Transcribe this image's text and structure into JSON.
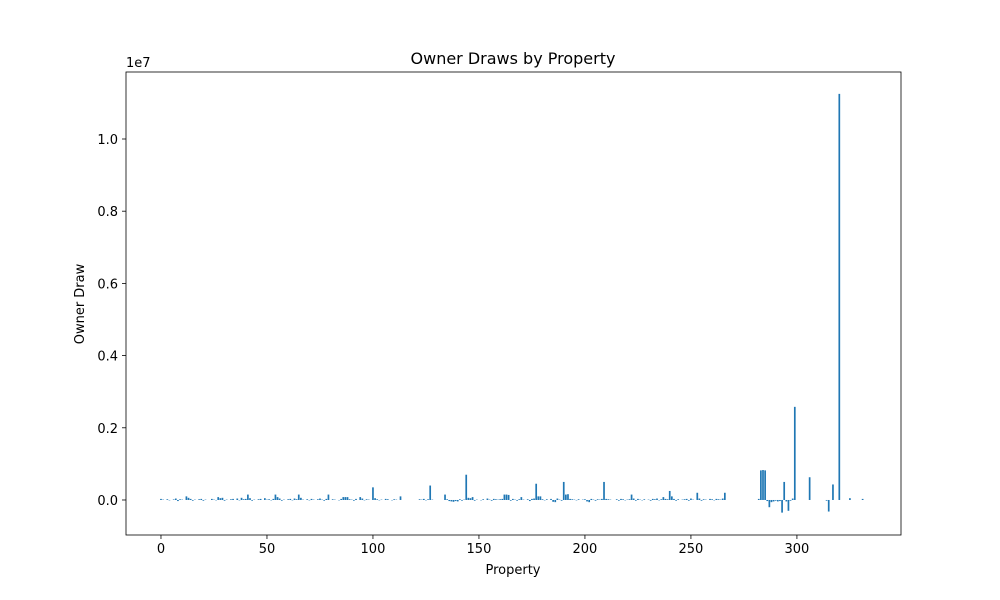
{
  "chart_data": {
    "type": "bar",
    "title": "Owner Draws by Property",
    "xlabel": "Property",
    "ylabel": "Owner Draw",
    "y_offset_label": "1e7",
    "color": "#1f77b4",
    "xlim": [
      -16.5,
      349.1
    ],
    "ylim": [
      -970000,
      11856000
    ],
    "xticks": [
      0,
      50,
      100,
      150,
      200,
      250,
      300
    ],
    "yticks": [
      {
        "value": 0,
        "label": "0.0"
      },
      {
        "value": 2000000,
        "label": "0.2"
      },
      {
        "value": 4000000,
        "label": "0.4"
      },
      {
        "value": 6000000,
        "label": "0.6"
      },
      {
        "value": 8000000,
        "label": "0.8"
      },
      {
        "value": 10000000,
        "label": "1.0"
      }
    ],
    "x": [
      0,
      1,
      2,
      3,
      4,
      5,
      6,
      7,
      8,
      9,
      10,
      11,
      12,
      13,
      14,
      15,
      16,
      17,
      18,
      19,
      20,
      21,
      22,
      23,
      24,
      25,
      26,
      27,
      28,
      29,
      30,
      31,
      32,
      33,
      34,
      35,
      36,
      37,
      38,
      39,
      40,
      41,
      42,
      43,
      44,
      45,
      46,
      47,
      48,
      49,
      50,
      51,
      52,
      53,
      54,
      55,
      56,
      57,
      58,
      59,
      60,
      61,
      62,
      63,
      64,
      65,
      66,
      67,
      68,
      69,
      70,
      71,
      72,
      73,
      74,
      75,
      76,
      77,
      78,
      79,
      80,
      81,
      82,
      83,
      84,
      85,
      86,
      87,
      88,
      89,
      90,
      91,
      92,
      93,
      94,
      95,
      96,
      97,
      98,
      99,
      100,
      101,
      102,
      103,
      104,
      105,
      106,
      107,
      108,
      109,
      110,
      111,
      112,
      113,
      114,
      115,
      116,
      117,
      118,
      119,
      120,
      121,
      122,
      123,
      124,
      125,
      126,
      127,
      128,
      129,
      130,
      131,
      132,
      133,
      134,
      135,
      136,
      137,
      138,
      139,
      140,
      141,
      142,
      143,
      144,
      145,
      146,
      147,
      148,
      149,
      150,
      151,
      152,
      153,
      154,
      155,
      156,
      157,
      158,
      159,
      160,
      161,
      162,
      163,
      164,
      165,
      166,
      167,
      168,
      169,
      170,
      171,
      172,
      173,
      174,
      175,
      176,
      177,
      178,
      179,
      180,
      181,
      182,
      183,
      184,
      185,
      186,
      187,
      188,
      189,
      190,
      191,
      192,
      193,
      194,
      195,
      196,
      197,
      198,
      199,
      200,
      201,
      202,
      203,
      204,
      205,
      206,
      207,
      208,
      209,
      210,
      211,
      212,
      213,
      214,
      215,
      216,
      217,
      218,
      219,
      220,
      221,
      222,
      223,
      224,
      225,
      226,
      227,
      228,
      229,
      230,
      231,
      232,
      233,
      234,
      235,
      236,
      237,
      238,
      239,
      240,
      241,
      242,
      243,
      244,
      245,
      246,
      247,
      248,
      249,
      250,
      251,
      252,
      253,
      254,
      255,
      256,
      257,
      258,
      259,
      260,
      261,
      262,
      263,
      264,
      265,
      266,
      267,
      268,
      269,
      270,
      271,
      272,
      273,
      274,
      275,
      276,
      277,
      278,
      279,
      280,
      281,
      282,
      283,
      284,
      285,
      286,
      287,
      288,
      289,
      290,
      291,
      292,
      293,
      294,
      295,
      296,
      297,
      298,
      299,
      300,
      301,
      302,
      303,
      304,
      305,
      306,
      307,
      308,
      309,
      310,
      311,
      312,
      313,
      314,
      315,
      316,
      317,
      318,
      319,
      320,
      321,
      322,
      323,
      324,
      325,
      326,
      327,
      328,
      329,
      330,
      331
    ],
    "values": [
      30000,
      10000,
      0,
      20000,
      -10000,
      0,
      15000,
      40000,
      -30000,
      20000,
      10000,
      0,
      100000,
      60000,
      30000,
      -20000,
      10000,
      0,
      20000,
      30000,
      -20000,
      10000,
      0,
      0,
      30000,
      10000,
      -10000,
      80000,
      50000,
      60000,
      -20000,
      10000,
      0,
      20000,
      30000,
      0,
      40000,
      -10000,
      60000,
      20000,
      30000,
      150000,
      50000,
      -20000,
      10000,
      0,
      20000,
      30000,
      0,
      50000,
      10000,
      20000,
      -10000,
      30000,
      150000,
      80000,
      40000,
      -20000,
      10000,
      0,
      20000,
      30000,
      -10000,
      40000,
      20000,
      150000,
      60000,
      10000,
      0,
      20000,
      -10000,
      30000,
      10000,
      0,
      20000,
      40000,
      10000,
      -20000,
      30000,
      150000,
      0,
      20000,
      10000,
      0,
      -10000,
      30000,
      80000,
      80000,
      80000,
      20000,
      10000,
      -20000,
      30000,
      0,
      80000,
      40000,
      -10000,
      20000,
      10000,
      0,
      350000,
      50000,
      20000,
      -10000,
      10000,
      0,
      30000,
      20000,
      0,
      -10000,
      20000,
      10000,
      0,
      100000,
      0,
      0,
      0,
      0,
      0,
      0,
      0,
      0,
      20000,
      10000,
      30000,
      -10000,
      20000,
      400000,
      10000,
      0,
      0,
      0,
      0,
      0,
      150000,
      20000,
      -30000,
      -40000,
      -50000,
      -30000,
      -40000,
      20000,
      -20000,
      10000,
      700000,
      60000,
      50000,
      80000,
      -20000,
      10000,
      0,
      -10000,
      20000,
      0,
      40000,
      10000,
      -20000,
      30000,
      20000,
      10000,
      20000,
      30000,
      150000,
      150000,
      140000,
      -20000,
      30000,
      10000,
      -20000,
      20000,
      80000,
      10000,
      0,
      20000,
      -30000,
      30000,
      40000,
      450000,
      100000,
      100000,
      20000,
      -10000,
      20000,
      0,
      30000,
      -50000,
      -60000,
      40000,
      10000,
      -20000,
      500000,
      150000,
      160000,
      30000,
      20000,
      10000,
      -10000,
      20000,
      0,
      10000,
      20000,
      -40000,
      -60000,
      30000,
      10000,
      -20000,
      20000,
      10000,
      30000,
      500000,
      30000,
      20000,
      10000,
      0,
      0,
      20000,
      -20000,
      30000,
      20000,
      -10000,
      10000,
      20000,
      150000,
      40000,
      -20000,
      30000,
      10000,
      -10000,
      20000,
      0,
      10000,
      -20000,
      30000,
      20000,
      40000,
      -10000,
      20000,
      80000,
      30000,
      20000,
      250000,
      100000,
      30000,
      -20000,
      20000,
      0,
      10000,
      20000,
      30000,
      -20000,
      40000,
      10000,
      0,
      200000,
      40000,
      -20000,
      20000,
      10000,
      0,
      30000,
      20000,
      -10000,
      30000,
      20000,
      10000,
      40000,
      200000,
      0,
      0,
      0,
      0,
      0,
      0,
      0,
      0,
      0,
      0,
      0,
      0,
      0,
      0,
      0,
      30000,
      820000,
      830000,
      820000,
      -30000,
      -200000,
      -60000,
      -40000,
      -20000,
      -40000,
      -30000,
      -350000,
      500000,
      -40000,
      -300000,
      -20000,
      40000,
      2580000,
      0,
      0,
      0,
      0,
      0,
      0,
      630000,
      0,
      0,
      0,
      0,
      0,
      0,
      0,
      -20000,
      -320000,
      0,
      430000,
      0,
      0,
      11250000,
      0,
      0,
      0,
      0,
      50000,
      0,
      0,
      0,
      0,
      0,
      30000
    ]
  }
}
